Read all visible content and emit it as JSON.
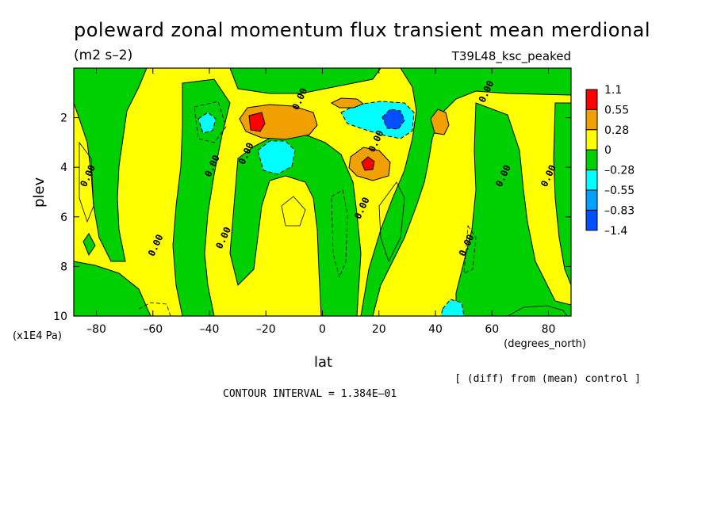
{
  "chart_data": {
    "type": "heatmap",
    "title": "poleward zonal momentum flux transient mean merdional",
    "units": "(m2 s–2)",
    "experiment": "T39L48_ksc_peaked",
    "xlabel": "lat",
    "x_units": "(degrees_north)",
    "ylabel": "plev",
    "y_units": "(x1E4 Pa)",
    "x_range": [
      -88,
      88
    ],
    "y_range": [
      0,
      10
    ],
    "y_inverted": true,
    "x_ticks": [
      {
        "v": -80,
        "label": "–80"
      },
      {
        "v": -60,
        "label": "–60"
      },
      {
        "v": -40,
        "label": "–40"
      },
      {
        "v": -20,
        "label": "–20"
      },
      {
        "v": 0,
        "label": "0"
      },
      {
        "v": 20,
        "label": "20"
      },
      {
        "v": 40,
        "label": "40"
      },
      {
        "v": 60,
        "label": "60"
      },
      {
        "v": 80,
        "label": "80"
      }
    ],
    "y_ticks": [
      {
        "v": 2,
        "label": "2"
      },
      {
        "v": 4,
        "label": "4"
      },
      {
        "v": 6,
        "label": "6"
      },
      {
        "v": 8,
        "label": "8"
      },
      {
        "v": 10,
        "label": "10"
      }
    ],
    "legend": {
      "placement": "right",
      "colors": [
        "#ff0000",
        "#f0a000",
        "#ffff00",
        "#00d000",
        "#00ffff",
        "#00a0ff",
        "#0050ff"
      ],
      "labels": [
        "1.1",
        "0.55",
        "0.28",
        "0",
        "–0.28",
        "–0.55",
        "–0.83",
        "–1.4"
      ]
    },
    "contour_labels": [
      {
        "lat": -82,
        "p": 4.4,
        "text": "0.00"
      },
      {
        "lat": -58,
        "p": 7.2,
        "text": "0.00"
      },
      {
        "lat": -38,
        "p": 4.0,
        "text": "0.00"
      },
      {
        "lat": -34,
        "p": 6.9,
        "text": "0.00"
      },
      {
        "lat": -26,
        "p": 3.5,
        "text": "0.00"
      },
      {
        "lat": -7,
        "p": 1.3,
        "text": "0.00"
      },
      {
        "lat": 20,
        "p": 3.0,
        "text": "0.00"
      },
      {
        "lat": 15,
        "p": 5.7,
        "text": "0.00"
      },
      {
        "lat": 59,
        "p": 1.0,
        "text": "0.00"
      },
      {
        "lat": 65,
        "p": 4.4,
        "text": "0.00"
      },
      {
        "lat": 52,
        "p": 7.2,
        "text": "0.00"
      },
      {
        "lat": 81,
        "p": 4.4,
        "text": "0.00"
      }
    ],
    "note": "[ (diff) from (mean) control ]",
    "contour_interval": "CONTOUR INTERVAL = 1.384E–01",
    "grid": false
  }
}
